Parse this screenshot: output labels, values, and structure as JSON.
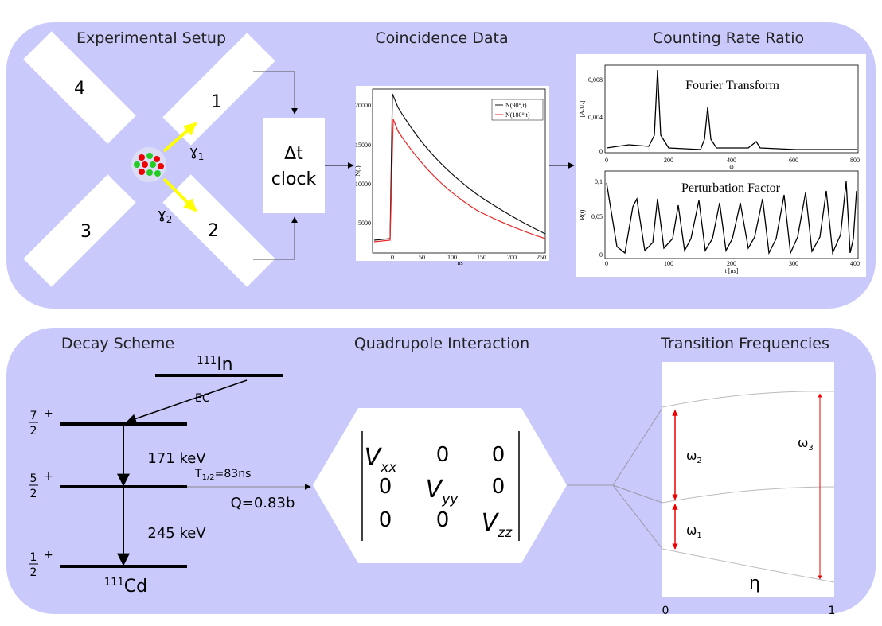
{
  "top_panel": {
    "titles": [
      "Experimental Setup",
      "Coincidence Data",
      "Counting Rate Ratio"
    ],
    "detectors": [
      "4",
      "1",
      "3",
      "2"
    ],
    "gamma1": {
      "symbol": "ɣ",
      "sub": "1"
    },
    "gamma2": {
      "symbol": "ɣ",
      "sub": "2"
    },
    "clock": [
      "Δt",
      "clock"
    ],
    "coincidence_chart": {
      "yticks": [
        "20000",
        "15000",
        "10000",
        "5000"
      ],
      "xticks": [
        "0",
        "50",
        "100",
        "150",
        "200",
        "250"
      ],
      "ylabel": "N(t)",
      "xlabel": "ns",
      "legend": [
        "N(90°,t)",
        "N(180°,t)"
      ]
    },
    "fourier_chart": {
      "title": "Fourier Transform",
      "yticks": [
        "0,008",
        "0,004",
        "0"
      ],
      "xticks": [
        "0",
        "200",
        "400",
        "600",
        "800"
      ],
      "ylabel": "[A.U.]",
      "xlabel": "ω"
    },
    "perturbation_chart": {
      "title": "Perturbation Factor",
      "yticks": [
        "0,1",
        "0,05",
        "0"
      ],
      "xticks": [
        "0",
        "100",
        "200",
        "300",
        "400"
      ],
      "ylabel": "R(t)",
      "xlabel": "t [ns]"
    }
  },
  "bottom_panel": {
    "titles": [
      "Decay Scheme",
      "Quadrupole Interaction",
      "Transition Frequencies"
    ],
    "parent": {
      "mass": "111",
      "element": "In"
    },
    "ec": "EC",
    "spins": [
      {
        "num": "7",
        "den": "2",
        "parity": "+"
      },
      {
        "num": "5",
        "den": "2",
        "parity": "+"
      },
      {
        "num": "1",
        "den": "2",
        "parity": "+"
      }
    ],
    "energies": [
      "171 keV",
      "245 keV"
    ],
    "half_life": {
      "prefix": "T",
      "sub": "1/2",
      "suffix": "=83ns"
    },
    "quadrupole_moment": "Q=0.83b",
    "daughter": {
      "mass": "111",
      "element": "Cd"
    },
    "matrix": [
      [
        {
          "v": "V",
          "sub": "xx"
        },
        "0",
        "0"
      ],
      [
        "0",
        {
          "v": "V",
          "sub": "yy"
        },
        "0"
      ],
      [
        "0",
        "0",
        {
          "v": "V",
          "sub": "zz"
        }
      ]
    ],
    "frequencies": [
      {
        "symbol": "ω",
        "sub": "2"
      },
      {
        "symbol": "ω",
        "sub": "3"
      },
      {
        "symbol": "ω",
        "sub": "1"
      }
    ],
    "eta": "η",
    "eta_ticks": [
      "0",
      "1"
    ]
  }
}
